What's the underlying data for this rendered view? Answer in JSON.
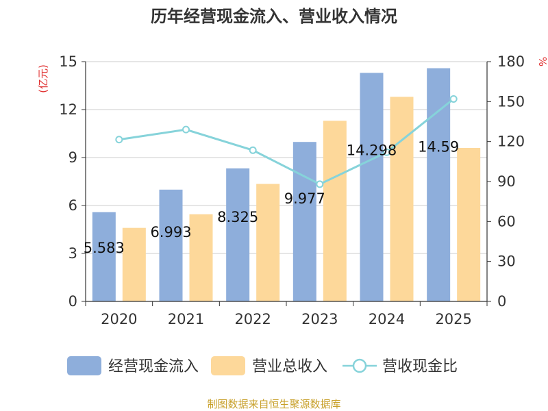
{
  "chart_data": {
    "type": "bar",
    "title": "历年经营现金流入、营业收入情况",
    "categories": [
      "2020",
      "2021",
      "2022",
      "2023",
      "2024",
      "2025"
    ],
    "series": [
      {
        "name": "经营现金流入",
        "kind": "bar",
        "axis": "left",
        "color": "#8eaedb",
        "values": [
          5.583,
          6.993,
          8.325,
          9.977,
          14.298,
          14.59
        ],
        "labels": [
          "5.583",
          "6.993",
          "8.325",
          "9.977",
          "14.298",
          "14.59"
        ]
      },
      {
        "name": "营业总收入",
        "kind": "bar",
        "axis": "left",
        "color": "#fdd89a",
        "values": [
          4.6,
          5.45,
          7.35,
          11.3,
          12.8,
          9.6
        ]
      },
      {
        "name": "营收现金比",
        "kind": "line",
        "axis": "right",
        "color": "#86d3da",
        "values": [
          121.5,
          129,
          113.5,
          88,
          112,
          152
        ]
      }
    ],
    "left_axis": {
      "unit_label": "(亿元)",
      "ylim": [
        0,
        15
      ],
      "ticks": [
        0,
        3,
        6,
        9,
        12,
        15
      ]
    },
    "right_axis": {
      "unit_label": "%",
      "ylim": [
        0,
        180
      ],
      "ticks": [
        0,
        30,
        60,
        90,
        120,
        150,
        180
      ]
    },
    "grid": true,
    "legend": {
      "position": "bottom"
    }
  },
  "footer": {
    "source": "制图数据来自恒生聚源数据库"
  }
}
